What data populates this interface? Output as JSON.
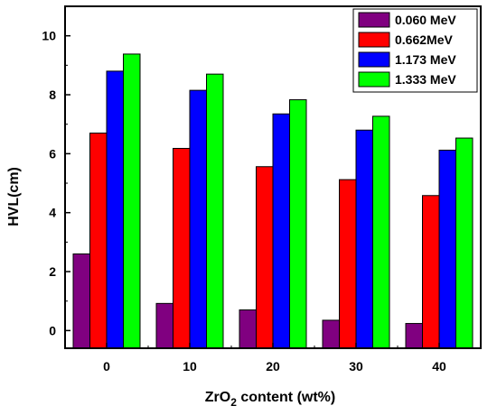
{
  "chart_data": {
    "type": "bar",
    "categories": [
      "0",
      "10",
      "20",
      "30",
      "40"
    ],
    "series": [
      {
        "name": "0.060 MeV",
        "color": "#800080",
        "values": [
          2.6,
          0.92,
          0.7,
          0.35,
          0.24
        ]
      },
      {
        "name": "0.662MeV",
        "color": "#ff0000",
        "values": [
          6.7,
          6.18,
          5.56,
          5.12,
          4.58
        ]
      },
      {
        "name": "1.173 MeV",
        "color": "#0000ff",
        "values": [
          8.8,
          8.15,
          7.35,
          6.8,
          6.12
        ]
      },
      {
        "name": "1.333 MeV",
        "color": "#00ff00",
        "values": [
          9.38,
          8.7,
          7.83,
          7.27,
          6.53
        ]
      }
    ],
    "xlabel_parts": {
      "pre": "ZrO",
      "sub": "2",
      "post": " content (wt%)"
    },
    "ylabel": "HVL(cm)",
    "ylim": [
      -0.6,
      11
    ],
    "yticks": [
      0,
      2,
      4,
      6,
      8,
      10
    ],
    "legend_position": "top-right",
    "grid": false
  }
}
